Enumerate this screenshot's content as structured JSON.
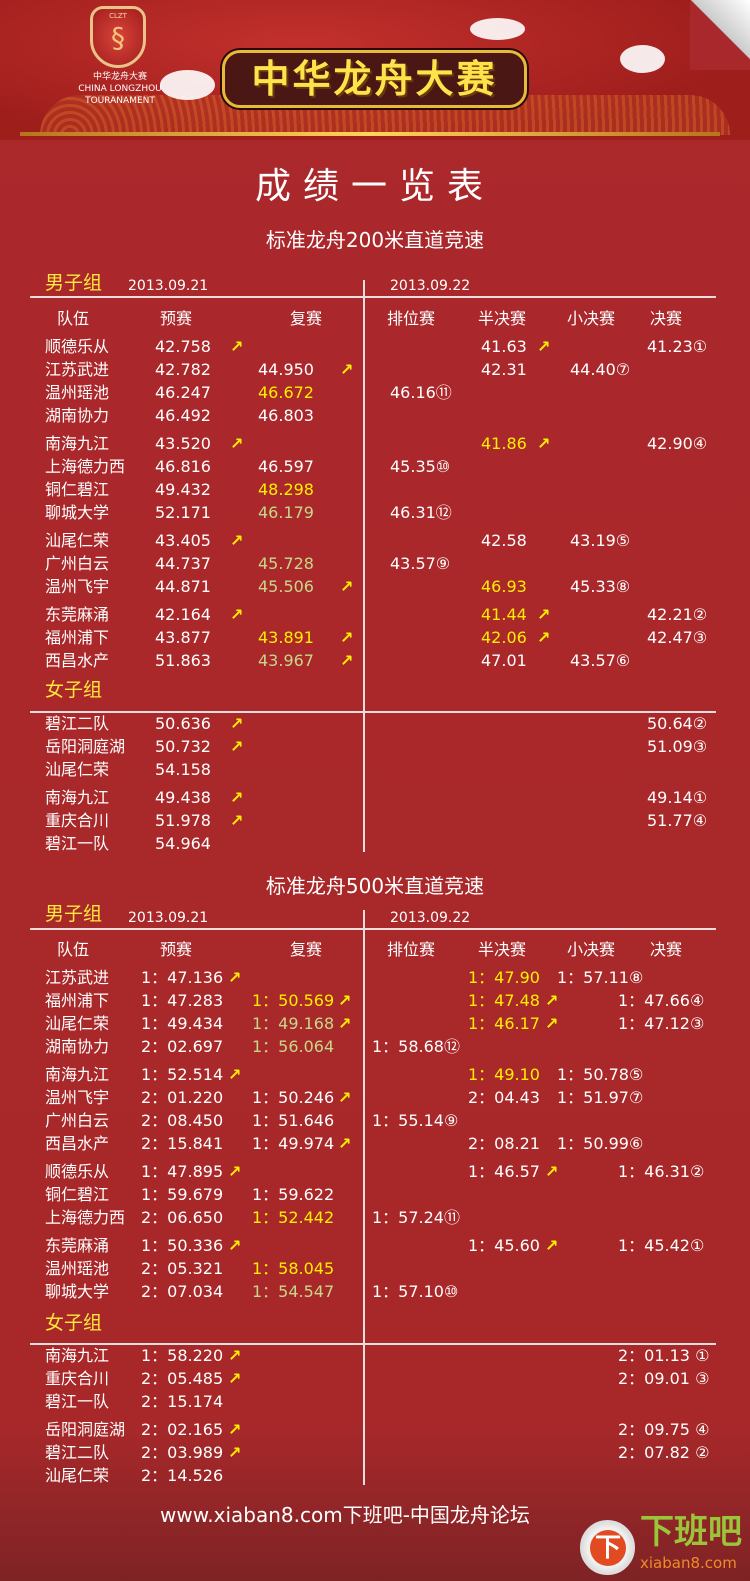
{
  "banner": {
    "logo_abbr": "CLZT",
    "logo_cn": "中华龙舟大赛",
    "logo_en1": "CHINA LONGZHOU",
    "logo_en2": "TOURANAMENT",
    "title": "中华龙舟大赛"
  },
  "title": "成绩一览表",
  "colors": {
    "background": "#a8282b",
    "advance_arrow": "#ffee00",
    "yellow_time": "#ffee00",
    "green_time": "#c7d78a"
  },
  "icons": {
    "advance": "arrow-up-right-icon"
  },
  "headers": {
    "team": "队伍",
    "prelim": "预赛",
    "rep": "复赛",
    "place": "排位赛",
    "semi": "半决赛",
    "small": "小决赛",
    "final": "决赛",
    "arrow": "↗"
  },
  "sections": [
    {
      "title": "标准龙舟200米直道竞速",
      "men_label": "男子组",
      "women_label": "女子组",
      "date1": "2013.09.21",
      "date2": "2013.09.22",
      "men": [
        [
          {
            "team": "顺德乐从",
            "prelim": "42.758",
            "pa": true,
            "semi": "41.63",
            "sa": true,
            "final": "41.23①"
          },
          {
            "team": "江苏武进",
            "prelim": "42.782",
            "rep": "44.950",
            "ra": true,
            "semi": "42.31",
            "small": "44.40⑦"
          },
          {
            "team": "温州瑶池",
            "prelim": "46.247",
            "rep": "46.672",
            "rc": "yellow",
            "place": "46.16⑪"
          },
          {
            "team": "湖南协力",
            "prelim": "46.492",
            "rep": "46.803"
          }
        ],
        [
          {
            "team": "南海九江",
            "prelim": "43.520",
            "pa": true,
            "semi": "41.86",
            "sc": "yellow",
            "sa": true,
            "final": "42.90④"
          },
          {
            "team": "上海德力西",
            "prelim": "46.816",
            "rep": "46.597",
            "place": "45.35⑩"
          },
          {
            "team": "铜仁碧江",
            "prelim": "49.432",
            "rep": "48.298",
            "rc": "yellow"
          },
          {
            "team": "聊城大学",
            "prelim": "52.171",
            "rep": "46.179",
            "rc": "green",
            "place": "46.31⑫"
          }
        ],
        [
          {
            "team": "汕尾仁荣",
            "prelim": "43.405",
            "pa": true,
            "semi": "42.58",
            "small": "43.19⑤"
          },
          {
            "team": "广州白云",
            "prelim": "44.737",
            "rep": "45.728",
            "rc": "green",
            "place": "43.57⑨"
          },
          {
            "team": "温州飞宇",
            "prelim": "44.871",
            "rep": "45.506",
            "rc": "green",
            "ra": true,
            "semi": "46.93",
            "sc": "yellow",
            "small": "45.33⑧"
          }
        ],
        [
          {
            "team": "东莞麻涌",
            "prelim": "42.164",
            "pa": true,
            "semi": "41.44",
            "sc": "yellow",
            "sa": true,
            "final": "42.21②"
          },
          {
            "team": "福州浦下",
            "prelim": "43.877",
            "rep": "43.891",
            "rc": "yellow",
            "ra": true,
            "semi": "42.06",
            "sc": "yellow",
            "sa": true,
            "final": "42.47③"
          },
          {
            "team": "西昌水产",
            "prelim": "51.863",
            "rep": "43.967",
            "rc": "green",
            "ra": true,
            "semi": "47.01",
            "small": "43.57⑥"
          }
        ]
      ],
      "women": [
        [
          {
            "team": "碧江二队",
            "prelim": "50.636",
            "pa": true,
            "final": "50.64②"
          },
          {
            "team": "岳阳洞庭湖",
            "prelim": "50.732",
            "pa": true,
            "final": "51.09③"
          },
          {
            "team": "汕尾仁荣",
            "prelim": "54.158"
          }
        ],
        [
          {
            "team": "南海九江",
            "prelim": "49.438",
            "pa": true,
            "final": "49.14①"
          },
          {
            "team": "重庆合川",
            "prelim": "51.978",
            "pa": true,
            "final": "51.77④"
          },
          {
            "team": "碧江一队",
            "prelim": "54.964"
          }
        ]
      ]
    },
    {
      "title": "标准龙舟500米直道竞速",
      "men_label": "男子组",
      "women_label": "女子组",
      "date1": "2013.09.21",
      "date2": "2013.09.22",
      "men": [
        [
          {
            "team": "江苏武进",
            "prelim": "1：47.136",
            "pa": true,
            "semi": "1：47.90",
            "sc": "yellow",
            "small": "1：57.11⑧"
          },
          {
            "team": "福州浦下",
            "prelim": "1：47.283",
            "rep": "1：50.569",
            "rc": "yellow",
            "ra": true,
            "semi": "1：47.48",
            "sc": "yellow",
            "sa": true,
            "final": "1：47.66④"
          },
          {
            "team": "汕尾仁荣",
            "prelim": "1：49.434",
            "rep": "1：49.168",
            "rc": "green",
            "ra": true,
            "semi": "1：46.17",
            "sc": "yellow",
            "sa": true,
            "final": "1：47.12③"
          },
          {
            "team": "湖南协力",
            "prelim": "2：02.697",
            "rep": "1：56.064",
            "rc": "green",
            "place": "1：58.68⑫"
          }
        ],
        [
          {
            "team": "南海九江",
            "prelim": "1：52.514",
            "pa": true,
            "semi": "1：49.10",
            "sc": "yellow",
            "small": "1：50.78⑤"
          },
          {
            "team": "温州飞宇",
            "prelim": "2：01.220",
            "rep": "1：50.246",
            "ra": true,
            "semi": "2：04.43",
            "small": "1：51.97⑦"
          },
          {
            "team": "广州白云",
            "prelim": "2：08.450",
            "rep": "1：51.646",
            "place": "1：55.14⑨"
          },
          {
            "team": "西昌水产",
            "prelim": "2：15.841",
            "rep": "1：49.974",
            "ra": true,
            "semi": "2：08.21",
            "small": "1：50.99⑥"
          }
        ],
        [
          {
            "team": "顺德乐从",
            "prelim": "1：47.895",
            "pa": true,
            "semi": "1：46.57",
            "sa": true,
            "final": "1：46.31②"
          },
          {
            "team": "铜仁碧江",
            "prelim": "1：59.679",
            "rep": "1：59.622"
          },
          {
            "team": "上海德力西",
            "prelim": "2：06.650",
            "rep": "1：52.442",
            "rc": "yellow",
            "place": "1：57.24⑪"
          }
        ],
        [
          {
            "team": "东莞麻涌",
            "prelim": "1：50.336",
            "pa": true,
            "semi": "1：45.60",
            "sa": true,
            "final": "1：45.42①"
          },
          {
            "team": "温州瑶池",
            "prelim": "2：05.321",
            "rep": "1：58.045",
            "rc": "yellow"
          },
          {
            "team": "聊城大学",
            "prelim": "2：07.034",
            "rep": "1：54.547",
            "rc": "green",
            "place": "1：57.10⑩"
          }
        ]
      ],
      "women": [
        [
          {
            "team": "南海九江",
            "prelim": "1：58.220",
            "pa": true,
            "final": "2：01.13 ①"
          },
          {
            "team": "重庆合川",
            "prelim": "2：05.485",
            "pa": true,
            "final": "2：09.01 ③"
          },
          {
            "team": "碧江一队",
            "prelim": "2：15.174"
          }
        ],
        [
          {
            "team": "岳阳洞庭湖",
            "prelim": "2：02.165",
            "pa": true,
            "final": "2：09.75 ④"
          },
          {
            "team": "碧江二队",
            "prelim": "2：03.989",
            "pa": true,
            "final": "2：07.82 ②"
          },
          {
            "team": "汕尾仁荣",
            "prelim": "2：14.526"
          }
        ]
      ]
    }
  ],
  "footer": {
    "text": "www.xiaban8.com下班吧-中国龙舟论坛",
    "logo_glyph": "下",
    "logo_name": "下班吧",
    "logo_domain": "xiaban8.com"
  }
}
